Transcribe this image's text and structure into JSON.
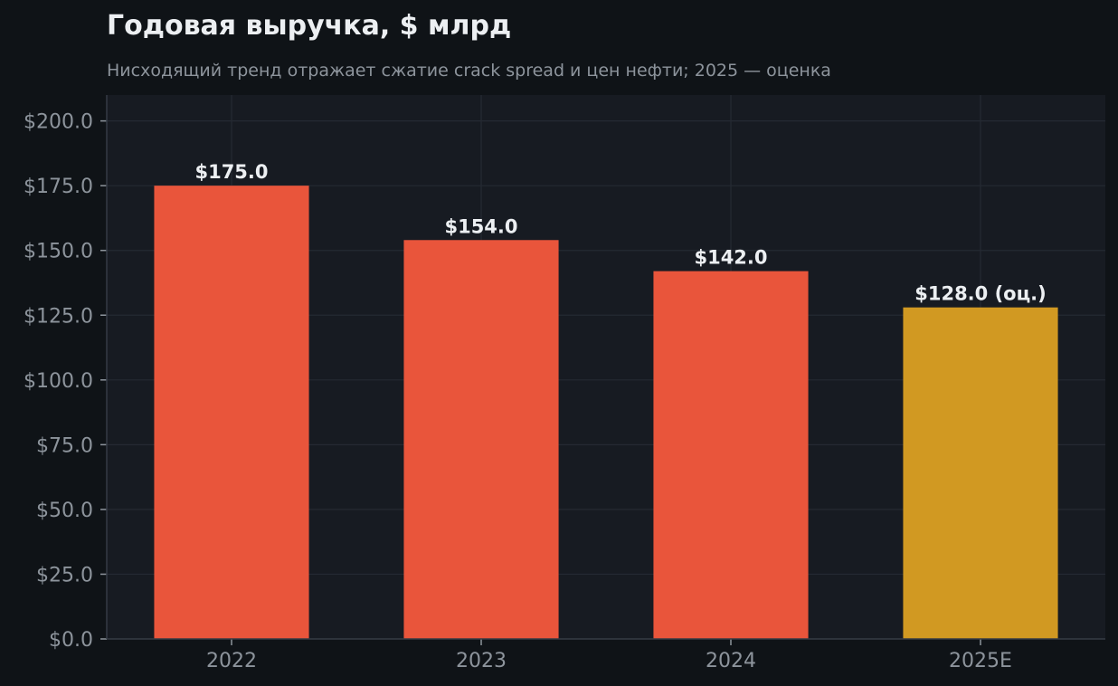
{
  "chart_data": {
    "type": "bar",
    "title": "Годовая выручка, $ млрд",
    "subtitle": "Нисходящий тренд отражает сжатие crack spread и цен нефти; 2025 — оценка",
    "categories": [
      "2022",
      "2023",
      "2024",
      "2025E"
    ],
    "values": [
      175.0,
      154.0,
      142.0,
      128.0
    ],
    "data_labels": [
      "$175.0",
      "$154.0",
      "$142.0",
      "$128.0 (оц.)"
    ],
    "bar_colors": [
      "#e9553b",
      "#e9553b",
      "#e9553b",
      "#d19922"
    ],
    "ylim": [
      0,
      210
    ],
    "yticks": [
      0,
      25,
      50,
      75,
      100,
      125,
      150,
      175,
      200
    ],
    "ytick_labels": [
      "$0.0",
      "$25.0",
      "$50.0",
      "$75.0",
      "$100.0",
      "$125.0",
      "$150.0",
      "$175.0",
      "$200.0"
    ],
    "xlabel": "",
    "ylabel": "",
    "grid": true,
    "legend": "none"
  },
  "colors": {
    "background": "#0f1317",
    "plot_background": "#171b22",
    "grid": "#252a33",
    "axis": "#353b45"
  }
}
